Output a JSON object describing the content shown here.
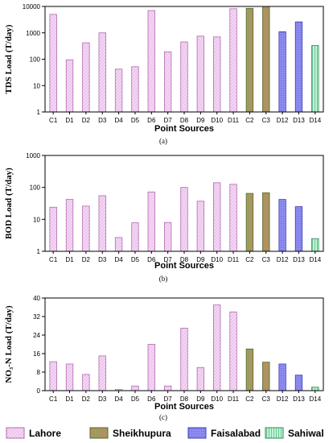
{
  "colors": {
    "Lahore": "#f5d8f5",
    "Lahore_stroke": "#b06ab0",
    "Sheikhupura": "#9c9a5c",
    "Sheikhupura_stroke": "#4f6a2a",
    "Faisalabad": "#8c8cf0",
    "Faisalabad_stroke": "#3c3cb0",
    "Sahiwal": "#bff5d5",
    "Sahiwal_stroke": "#2e8b57"
  },
  "legend": [
    "Lahore",
    "Sheikhupura",
    "Faisalabad",
    "Sahiwal"
  ],
  "chart_data": [
    {
      "type": "bar",
      "panel_label": "(a)",
      "ylabel": "TDS  Load  (T/day)",
      "xlabel": "Point Sources",
      "scale": "log",
      "ylim": [
        1,
        10000
      ],
      "yticks": [
        "1",
        "10",
        "100",
        "1000",
        "10000"
      ],
      "categories": [
        "C1",
        "D1",
        "D2",
        "D3",
        "D4",
        "D5",
        "D6",
        "D7",
        "D8",
        "D9",
        "D10",
        "D11",
        "C2",
        "C3",
        "D12",
        "D13",
        "D14"
      ],
      "groups": [
        "Lahore",
        "Lahore",
        "Lahore",
        "Lahore",
        "Lahore",
        "Lahore",
        "Lahore",
        "Lahore",
        "Lahore",
        "Lahore",
        "Lahore",
        "Lahore",
        "Sheikhupura",
        "Sheikhupura",
        "Faisalabad",
        "Faisalabad",
        "Sahiwal"
      ],
      "values": [
        5000,
        95,
        420,
        1000,
        42,
        52,
        7000,
        190,
        450,
        750,
        700,
        8200,
        8500,
        10000,
        1100,
        2600,
        330
      ]
    },
    {
      "type": "bar",
      "panel_label": "(b)",
      "ylabel": "BOD  Load  (T/day)",
      "xlabel": "Point Sources",
      "scale": "log",
      "ylim": [
        1,
        1000
      ],
      "yticks": [
        "1",
        "10",
        "100",
        "1000"
      ],
      "categories": [
        "C1",
        "D1",
        "D2",
        "D3",
        "D4",
        "D5",
        "D6",
        "D7",
        "D8",
        "D9",
        "D10",
        "D11",
        "C2",
        "C3",
        "D12",
        "D13",
        "D14"
      ],
      "groups": [
        "Lahore",
        "Lahore",
        "Lahore",
        "Lahore",
        "Lahore",
        "Lahore",
        "Lahore",
        "Lahore",
        "Lahore",
        "Lahore",
        "Lahore",
        "Lahore",
        "Sheikhupura",
        "Sheikhupura",
        "Faisalabad",
        "Faisalabad",
        "Sahiwal"
      ],
      "values": [
        24,
        42,
        26,
        55,
        2.7,
        7.8,
        72,
        8,
        100,
        37,
        140,
        125,
        65,
        68,
        42,
        25,
        2.5
      ]
    },
    {
      "type": "bar",
      "panel_label": "(c)",
      "ylabel": "NO₃-N  Load  (T/day)",
      "xlabel": "Point Sources",
      "scale": "linear",
      "ylim": [
        0,
        40
      ],
      "yticks": [
        "0",
        "8",
        "16",
        "24",
        "32",
        "40"
      ],
      "categories": [
        "C1",
        "D1",
        "D2",
        "D3",
        "D4",
        "D5",
        "D6",
        "D7",
        "D8",
        "D9",
        "D10",
        "D11",
        "C2",
        "C3",
        "D12",
        "D13",
        "D14"
      ],
      "groups": [
        "Lahore",
        "Lahore",
        "Lahore",
        "Lahore",
        "Lahore",
        "Lahore",
        "Lahore",
        "Lahore",
        "Lahore",
        "Lahore",
        "Lahore",
        "Lahore",
        "Sheikhupura",
        "Sheikhupura",
        "Faisalabad",
        "Faisalabad",
        "Sahiwal"
      ],
      "values": [
        12.5,
        11.5,
        7,
        15,
        0.5,
        2,
        20,
        2,
        27,
        10,
        37,
        34,
        18,
        12.3,
        11.5,
        6.7,
        1.5
      ]
    }
  ]
}
